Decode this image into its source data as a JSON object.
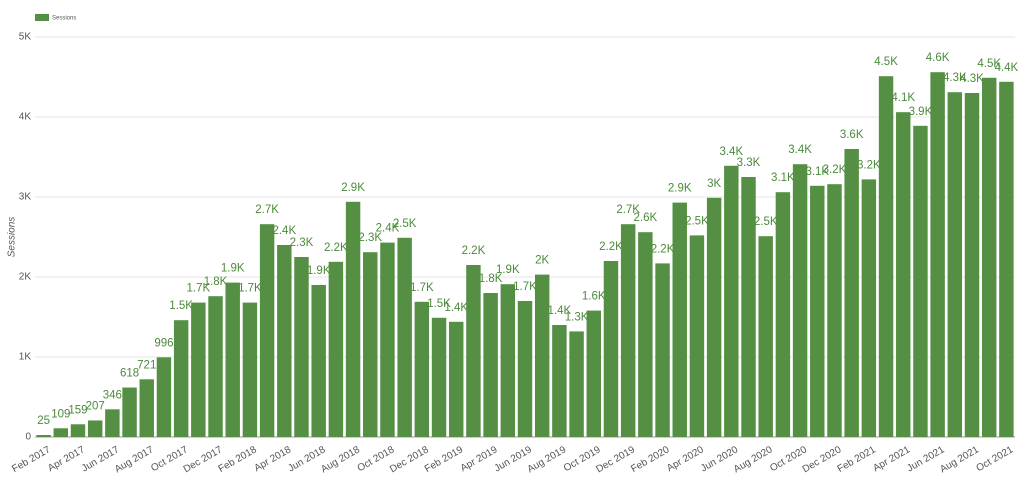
{
  "chart_data": {
    "type": "bar",
    "legend": "top-left",
    "grid": true,
    "y_label": "Sessions",
    "series": [
      {
        "name": "Sessions",
        "color": "#558f44",
        "values": [
          25,
          109,
          159,
          207,
          346,
          618,
          721,
          996,
          1460,
          1680,
          1760,
          1930,
          1680,
          2660,
          2400,
          2250,
          1900,
          2190,
          2940,
          2310,
          2430,
          2490,
          1690,
          1490,
          1440,
          2150,
          1800,
          1910,
          1700,
          2030,
          1400,
          1320,
          1580,
          2200,
          2660,
          2560,
          2170,
          2930,
          2520,
          2990,
          3390,
          3250,
          2510,
          3060,
          3410,
          3140,
          3160,
          3600,
          3220,
          4510,
          4060,
          3890,
          4560,
          4310,
          4300,
          4490,
          4440
        ],
        "value_labels": [
          "25",
          "109",
          "159",
          "207",
          "346",
          "618",
          "721",
          "996",
          "1.5K",
          "1.7K",
          "1.8K",
          "1.9K",
          "1.7K",
          "2.7K",
          "2.4K",
          "2.3K",
          "1.9K",
          "2.2K",
          "2.9K",
          "2.3K",
          "2.4K",
          "2.5K",
          "1.7K",
          "1.5K",
          "1.4K",
          "2.2K",
          "1.8K",
          "1.9K",
          "1.7K",
          "2K",
          "1.4K",
          "1.3K",
          "1.6K",
          "2.2K",
          "2.7K",
          "2.6K",
          "2.2K",
          "2.9K",
          "2.5K",
          "3K",
          "3.4K",
          "3.3K",
          "2.5K",
          "3.1K",
          "3.4K",
          "3.1K",
          "3.2K",
          "3.6K",
          "3.2K",
          "4.5K",
          "4.1K",
          "3.9K",
          "4.6K",
          "4.3K",
          "4.3K",
          "4.5K",
          "4.4K"
        ]
      }
    ],
    "categories": [
      "Feb 2017",
      null,
      "Apr 2017",
      null,
      "Jun 2017",
      null,
      "Aug 2017",
      null,
      "Oct 2017",
      null,
      "Dec 2017",
      null,
      "Feb 2018",
      null,
      "Apr 2018",
      null,
      "Jun 2018",
      null,
      "Aug 2018",
      null,
      "Oct 2018",
      null,
      "Dec 2018",
      null,
      "Feb 2019",
      null,
      "Apr 2019",
      null,
      "Jun 2019",
      null,
      "Aug 2019",
      null,
      "Oct 2019",
      null,
      "Dec 2019",
      null,
      "Feb 2020",
      null,
      "Apr 2020",
      null,
      "Jun 2020",
      null,
      "Aug 2020",
      null,
      "Oct 2020",
      null,
      "Dec 2020",
      null,
      "Feb 2021",
      null,
      "Apr 2021",
      null,
      "Jun 2021",
      null,
      "Aug 2021",
      null,
      "Oct 2021"
    ],
    "ylim": [
      0,
      5000
    ],
    "yticks": [
      0,
      {
        "value": 1000,
        "label": "1K"
      },
      {
        "value": 2000,
        "label": "2K"
      },
      {
        "value": 3000,
        "label": "3K"
      },
      {
        "value": 4000,
        "label": "4K"
      },
      {
        "value": 5000,
        "label": "5K"
      }
    ]
  }
}
